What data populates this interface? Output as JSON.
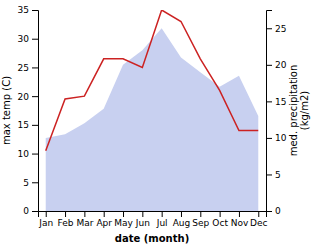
{
  "chart_data": {
    "type": "line",
    "categories": [
      "Jan",
      "Feb",
      "Mar",
      "Apr",
      "May",
      "Jun",
      "Jul",
      "Aug",
      "Sep",
      "Oct",
      "Nov",
      "Dec"
    ],
    "series": [
      {
        "type": "area",
        "axis": "y2",
        "color": "#c8d0f0",
        "values": [
          10.0,
          10.5,
          12.0,
          14.0,
          20.0,
          22.0,
          25.0,
          21.0,
          19.0,
          17.0,
          18.5,
          13.0
        ]
      },
      {
        "type": "line",
        "color": "#cc2222",
        "values": [
          10.5,
          19.5,
          20.0,
          26.5,
          26.5,
          25.0,
          35.0,
          33.0,
          26.5,
          21.0,
          14.0,
          14.0
        ]
      }
    ],
    "x_label": "date (month)",
    "y_label": "max temp (C)",
    "y2_label": "med. precipitation\n(kg/m2)",
    "ylim": [
      0,
      35
    ],
    "yticks": [
      0,
      5,
      10,
      15,
      20,
      25,
      30,
      35
    ],
    "y2lim": [
      0,
      27.5
    ],
    "y2ticks": [
      0,
      5,
      10,
      15,
      20,
      25
    ]
  }
}
